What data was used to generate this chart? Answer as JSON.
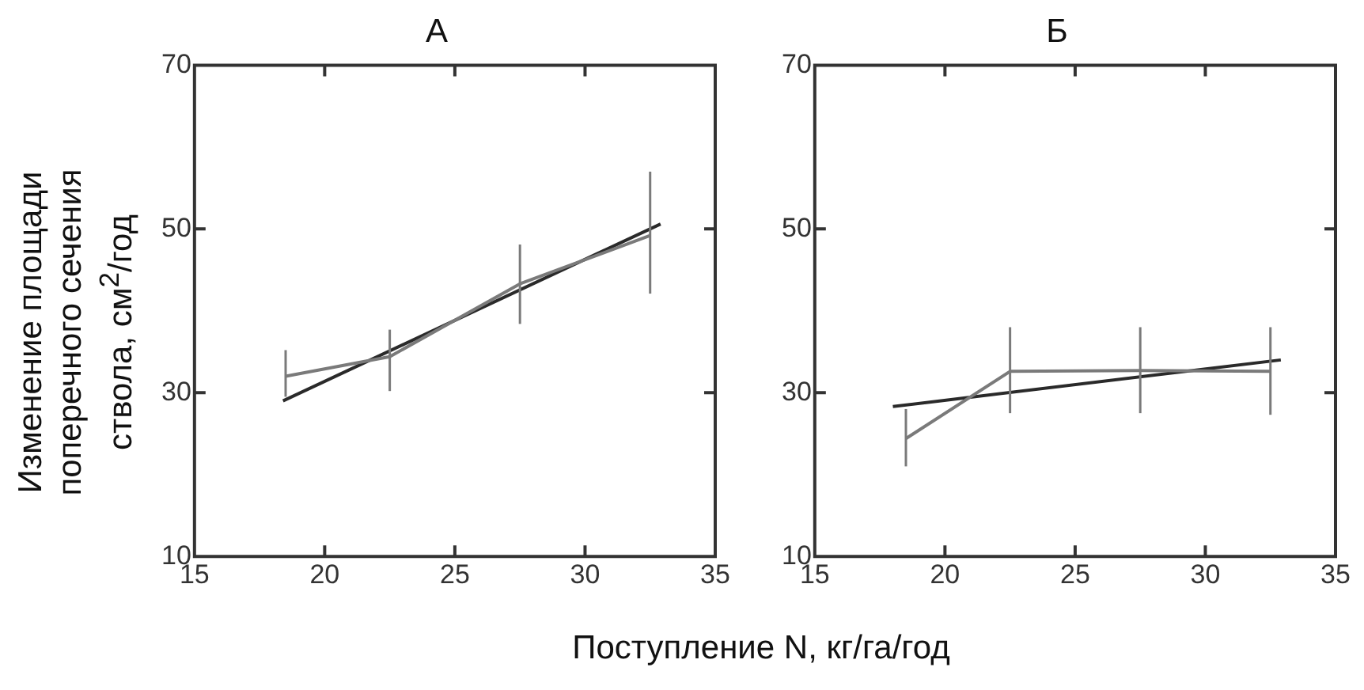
{
  "chart_data": [
    {
      "type": "line",
      "title": "А",
      "ylabel": "Изменение площади поперечного сечения ствола, см$^{2}$/год",
      "xlabel": "Поступление N, кг/га/год",
      "xlim": [
        15,
        35
      ],
      "xticks": [
        15,
        20,
        25,
        30,
        35
      ],
      "ylim": [
        10,
        70
      ],
      "yticks": [
        10,
        30,
        50,
        70
      ],
      "grid": false,
      "legend": false,
      "marker": "none",
      "line_style": "solid",
      "x": [
        18.5,
        22.5,
        27.5,
        32.5
      ],
      "series": [
        {
          "color": "#7a7a7a",
          "values": [
            32,
            34.4,
            43.3,
            49.2
          ],
          "errors": [
            [
              29.5,
              35.2
            ],
            [
              30.2,
              37.7
            ],
            [
              38.4,
              48.1
            ],
            [
              42.1,
              57
            ]
          ]
        },
        {
          "color": "#2a2a2a",
          "x": [
            18.4,
            32.9
          ],
          "values": [
            29,
            50.6
          ]
        }
      ]
    },
    {
      "type": "line",
      "title": "Б",
      "xlim": [
        15,
        35
      ],
      "xticks": [
        15,
        20,
        25,
        30,
        35
      ],
      "ylim": [
        10,
        70
      ],
      "yticks": [
        10,
        30,
        50,
        70
      ],
      "grid": false,
      "legend": false,
      "marker": "none",
      "line_style": "solid",
      "x": [
        18.5,
        22.5,
        27.5,
        32.5
      ],
      "series": [
        {
          "color": "#7a7a7a",
          "values": [
            24.4,
            32.6,
            32.7,
            32.6
          ],
          "errors": [
            [
              21,
              28
            ],
            [
              27.5,
              38
            ],
            [
              27.5,
              38
            ],
            [
              27.3,
              38
            ]
          ]
        },
        {
          "color": "#2a2a2a",
          "x": [
            18,
            32.9
          ],
          "values": [
            28.3,
            34
          ]
        }
      ]
    }
  ]
}
